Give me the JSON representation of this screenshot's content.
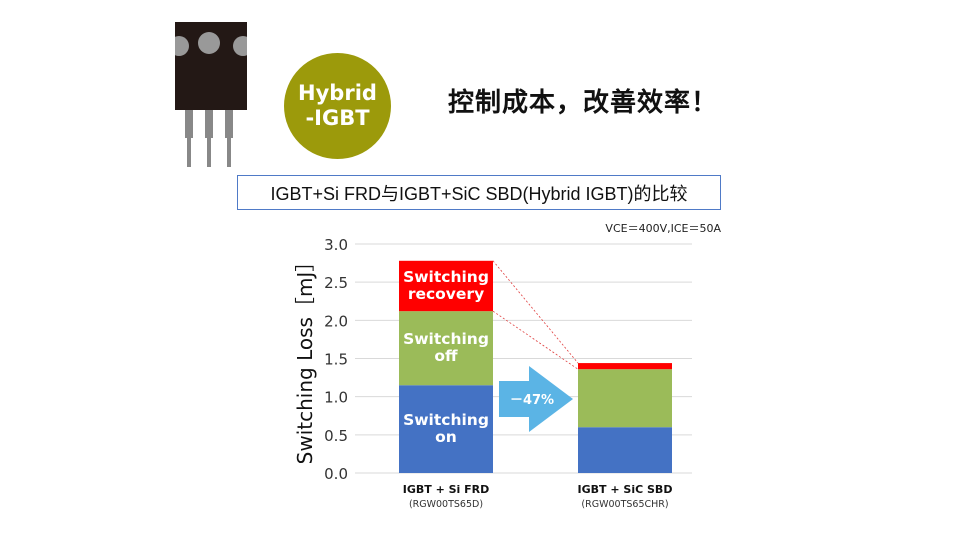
{
  "slide": {
    "badge_line1": "Hybrid",
    "badge_line2": "-IGBT",
    "headline": "控制成本，改善效率！",
    "subtitle": "IGBT+Si FRD与IGBT+SiC SBD(Hybrid IGBT)的比较",
    "condition_note": "VCE＝400V,ICE＝50A",
    "arrow_label": "－47%"
  },
  "colors": {
    "on": "#4472c4",
    "off": "#9bbb59",
    "recovery": "#ff0000",
    "arrow": "#5bb4e5",
    "badge": "#9c9a0b"
  },
  "chart_data": {
    "type": "bar",
    "stacked": true,
    "ylabel": "Switching Loss［mJ］",
    "ylim": [
      0,
      3.0
    ],
    "yticks": [
      "0.0",
      "0.5",
      "1.0",
      "1.5",
      "2.0",
      "2.5",
      "3.0"
    ],
    "grid": true,
    "categories": [
      "IGBT + Si FRD",
      "IGBT + SiC SBD"
    ],
    "category_sublabels": [
      "(RGW00TS65D)",
      "(RGW00TS65CHR)"
    ],
    "series": [
      {
        "name": "Switching on",
        "values": [
          1.15,
          0.6
        ],
        "color_key": "on"
      },
      {
        "name": "Switching off",
        "values": [
          0.97,
          0.76
        ],
        "color_key": "off"
      },
      {
        "name": "Switching recovery",
        "values": [
          0.66,
          0.08
        ],
        "color_key": "recovery"
      }
    ],
    "series_label_lines": [
      [
        "Switching",
        "on"
      ],
      [
        "Switching",
        "off"
      ],
      [
        "Switching",
        "recovery"
      ]
    ]
  }
}
